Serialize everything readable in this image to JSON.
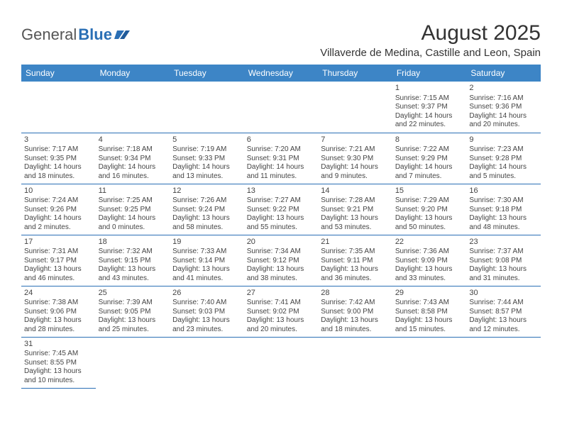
{
  "logo": {
    "text1": "General",
    "text2": "Blue"
  },
  "title": "August 2025",
  "location": "Villaverde de Medina, Castille and Leon, Spain",
  "colors": {
    "header_bg": "#3d85c6",
    "border": "#2a6fb5",
    "text": "#333333"
  },
  "weekdays": [
    "Sunday",
    "Monday",
    "Tuesday",
    "Wednesday",
    "Thursday",
    "Friday",
    "Saturday"
  ],
  "weeks": [
    [
      null,
      null,
      null,
      null,
      null,
      {
        "d": "1",
        "sr": "Sunrise: 7:15 AM",
        "ss": "Sunset: 9:37 PM",
        "dl1": "Daylight: 14 hours",
        "dl2": "and 22 minutes."
      },
      {
        "d": "2",
        "sr": "Sunrise: 7:16 AM",
        "ss": "Sunset: 9:36 PM",
        "dl1": "Daylight: 14 hours",
        "dl2": "and 20 minutes."
      }
    ],
    [
      {
        "d": "3",
        "sr": "Sunrise: 7:17 AM",
        "ss": "Sunset: 9:35 PM",
        "dl1": "Daylight: 14 hours",
        "dl2": "and 18 minutes."
      },
      {
        "d": "4",
        "sr": "Sunrise: 7:18 AM",
        "ss": "Sunset: 9:34 PM",
        "dl1": "Daylight: 14 hours",
        "dl2": "and 16 minutes."
      },
      {
        "d": "5",
        "sr": "Sunrise: 7:19 AM",
        "ss": "Sunset: 9:33 PM",
        "dl1": "Daylight: 14 hours",
        "dl2": "and 13 minutes."
      },
      {
        "d": "6",
        "sr": "Sunrise: 7:20 AM",
        "ss": "Sunset: 9:31 PM",
        "dl1": "Daylight: 14 hours",
        "dl2": "and 11 minutes."
      },
      {
        "d": "7",
        "sr": "Sunrise: 7:21 AM",
        "ss": "Sunset: 9:30 PM",
        "dl1": "Daylight: 14 hours",
        "dl2": "and 9 minutes."
      },
      {
        "d": "8",
        "sr": "Sunrise: 7:22 AM",
        "ss": "Sunset: 9:29 PM",
        "dl1": "Daylight: 14 hours",
        "dl2": "and 7 minutes."
      },
      {
        "d": "9",
        "sr": "Sunrise: 7:23 AM",
        "ss": "Sunset: 9:28 PM",
        "dl1": "Daylight: 14 hours",
        "dl2": "and 5 minutes."
      }
    ],
    [
      {
        "d": "10",
        "sr": "Sunrise: 7:24 AM",
        "ss": "Sunset: 9:26 PM",
        "dl1": "Daylight: 14 hours",
        "dl2": "and 2 minutes."
      },
      {
        "d": "11",
        "sr": "Sunrise: 7:25 AM",
        "ss": "Sunset: 9:25 PM",
        "dl1": "Daylight: 14 hours",
        "dl2": "and 0 minutes."
      },
      {
        "d": "12",
        "sr": "Sunrise: 7:26 AM",
        "ss": "Sunset: 9:24 PM",
        "dl1": "Daylight: 13 hours",
        "dl2": "and 58 minutes."
      },
      {
        "d": "13",
        "sr": "Sunrise: 7:27 AM",
        "ss": "Sunset: 9:22 PM",
        "dl1": "Daylight: 13 hours",
        "dl2": "and 55 minutes."
      },
      {
        "d": "14",
        "sr": "Sunrise: 7:28 AM",
        "ss": "Sunset: 9:21 PM",
        "dl1": "Daylight: 13 hours",
        "dl2": "and 53 minutes."
      },
      {
        "d": "15",
        "sr": "Sunrise: 7:29 AM",
        "ss": "Sunset: 9:20 PM",
        "dl1": "Daylight: 13 hours",
        "dl2": "and 50 minutes."
      },
      {
        "d": "16",
        "sr": "Sunrise: 7:30 AM",
        "ss": "Sunset: 9:18 PM",
        "dl1": "Daylight: 13 hours",
        "dl2": "and 48 minutes."
      }
    ],
    [
      {
        "d": "17",
        "sr": "Sunrise: 7:31 AM",
        "ss": "Sunset: 9:17 PM",
        "dl1": "Daylight: 13 hours",
        "dl2": "and 46 minutes."
      },
      {
        "d": "18",
        "sr": "Sunrise: 7:32 AM",
        "ss": "Sunset: 9:15 PM",
        "dl1": "Daylight: 13 hours",
        "dl2": "and 43 minutes."
      },
      {
        "d": "19",
        "sr": "Sunrise: 7:33 AM",
        "ss": "Sunset: 9:14 PM",
        "dl1": "Daylight: 13 hours",
        "dl2": "and 41 minutes."
      },
      {
        "d": "20",
        "sr": "Sunrise: 7:34 AM",
        "ss": "Sunset: 9:12 PM",
        "dl1": "Daylight: 13 hours",
        "dl2": "and 38 minutes."
      },
      {
        "d": "21",
        "sr": "Sunrise: 7:35 AM",
        "ss": "Sunset: 9:11 PM",
        "dl1": "Daylight: 13 hours",
        "dl2": "and 36 minutes."
      },
      {
        "d": "22",
        "sr": "Sunrise: 7:36 AM",
        "ss": "Sunset: 9:09 PM",
        "dl1": "Daylight: 13 hours",
        "dl2": "and 33 minutes."
      },
      {
        "d": "23",
        "sr": "Sunrise: 7:37 AM",
        "ss": "Sunset: 9:08 PM",
        "dl1": "Daylight: 13 hours",
        "dl2": "and 31 minutes."
      }
    ],
    [
      {
        "d": "24",
        "sr": "Sunrise: 7:38 AM",
        "ss": "Sunset: 9:06 PM",
        "dl1": "Daylight: 13 hours",
        "dl2": "and 28 minutes."
      },
      {
        "d": "25",
        "sr": "Sunrise: 7:39 AM",
        "ss": "Sunset: 9:05 PM",
        "dl1": "Daylight: 13 hours",
        "dl2": "and 25 minutes."
      },
      {
        "d": "26",
        "sr": "Sunrise: 7:40 AM",
        "ss": "Sunset: 9:03 PM",
        "dl1": "Daylight: 13 hours",
        "dl2": "and 23 minutes."
      },
      {
        "d": "27",
        "sr": "Sunrise: 7:41 AM",
        "ss": "Sunset: 9:02 PM",
        "dl1": "Daylight: 13 hours",
        "dl2": "and 20 minutes."
      },
      {
        "d": "28",
        "sr": "Sunrise: 7:42 AM",
        "ss": "Sunset: 9:00 PM",
        "dl1": "Daylight: 13 hours",
        "dl2": "and 18 minutes."
      },
      {
        "d": "29",
        "sr": "Sunrise: 7:43 AM",
        "ss": "Sunset: 8:58 PM",
        "dl1": "Daylight: 13 hours",
        "dl2": "and 15 minutes."
      },
      {
        "d": "30",
        "sr": "Sunrise: 7:44 AM",
        "ss": "Sunset: 8:57 PM",
        "dl1": "Daylight: 13 hours",
        "dl2": "and 12 minutes."
      }
    ],
    [
      {
        "d": "31",
        "sr": "Sunrise: 7:45 AM",
        "ss": "Sunset: 8:55 PM",
        "dl1": "Daylight: 13 hours",
        "dl2": "and 10 minutes."
      },
      null,
      null,
      null,
      null,
      null,
      null
    ]
  ]
}
